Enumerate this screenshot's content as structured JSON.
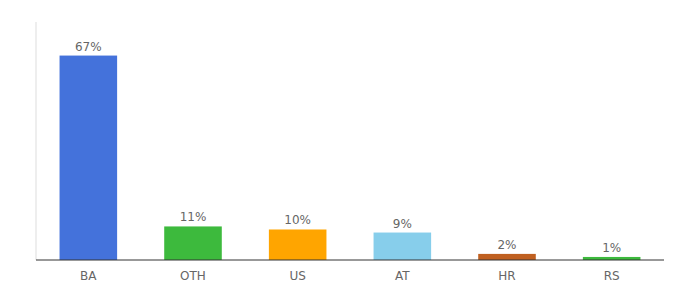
{
  "chart_data": {
    "type": "bar",
    "categories": [
      "BA",
      "OTH",
      "US",
      "AT",
      "HR",
      "RS"
    ],
    "values": [
      67,
      11,
      10,
      9,
      2,
      1
    ],
    "value_labels": [
      "67%",
      "11%",
      "10%",
      "9%",
      "2%",
      "1%"
    ],
    "colors": [
      "#4472db",
      "#3dba3d",
      "#ffa500",
      "#87ceeb",
      "#c06020",
      "#3dba3d"
    ],
    "ylim": [
      0,
      78
    ],
    "data_labels": true,
    "tick_labels": "x"
  }
}
